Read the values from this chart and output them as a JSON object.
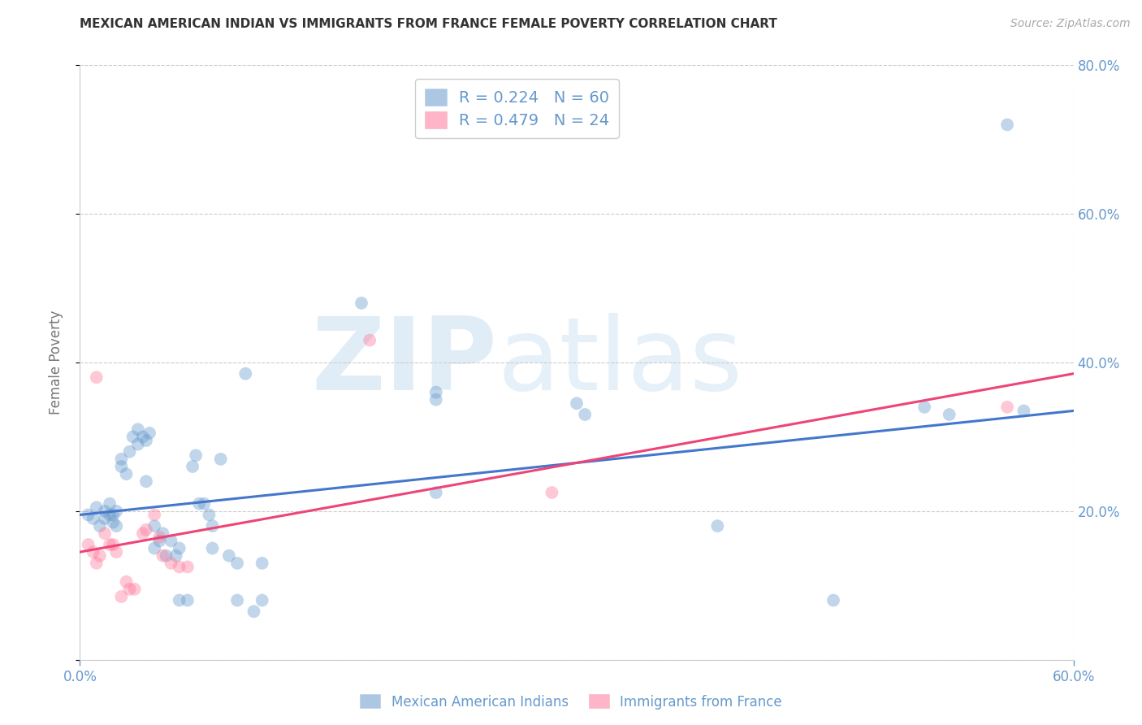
{
  "title": "MEXICAN AMERICAN INDIAN VS IMMIGRANTS FROM FRANCE FEMALE POVERTY CORRELATION CHART",
  "source": "Source: ZipAtlas.com",
  "ylabel": "Female Poverty",
  "xlim": [
    0.0,
    0.6
  ],
  "ylim": [
    0.0,
    0.8
  ],
  "xticks": [
    0.0,
    0.6
  ],
  "yticks": [
    0.0,
    0.2,
    0.4,
    0.6,
    0.8
  ],
  "blue_R": 0.224,
  "blue_N": 60,
  "pink_R": 0.479,
  "pink_N": 24,
  "blue_color": "#6699cc",
  "pink_color": "#ff7799",
  "blue_scatter": [
    [
      0.005,
      0.195
    ],
    [
      0.008,
      0.19
    ],
    [
      0.01,
      0.205
    ],
    [
      0.012,
      0.18
    ],
    [
      0.015,
      0.2
    ],
    [
      0.015,
      0.19
    ],
    [
      0.018,
      0.195
    ],
    [
      0.018,
      0.21
    ],
    [
      0.02,
      0.195
    ],
    [
      0.02,
      0.185
    ],
    [
      0.022,
      0.2
    ],
    [
      0.022,
      0.18
    ],
    [
      0.025,
      0.26
    ],
    [
      0.025,
      0.27
    ],
    [
      0.028,
      0.25
    ],
    [
      0.03,
      0.28
    ],
    [
      0.032,
      0.3
    ],
    [
      0.035,
      0.29
    ],
    [
      0.035,
      0.31
    ],
    [
      0.038,
      0.3
    ],
    [
      0.04,
      0.295
    ],
    [
      0.04,
      0.24
    ],
    [
      0.042,
      0.305
    ],
    [
      0.045,
      0.18
    ],
    [
      0.045,
      0.15
    ],
    [
      0.048,
      0.16
    ],
    [
      0.05,
      0.17
    ],
    [
      0.052,
      0.14
    ],
    [
      0.055,
      0.16
    ],
    [
      0.058,
      0.14
    ],
    [
      0.06,
      0.15
    ],
    [
      0.06,
      0.08
    ],
    [
      0.065,
      0.08
    ],
    [
      0.068,
      0.26
    ],
    [
      0.07,
      0.275
    ],
    [
      0.072,
      0.21
    ],
    [
      0.075,
      0.21
    ],
    [
      0.078,
      0.195
    ],
    [
      0.08,
      0.18
    ],
    [
      0.08,
      0.15
    ],
    [
      0.085,
      0.27
    ],
    [
      0.09,
      0.14
    ],
    [
      0.095,
      0.13
    ],
    [
      0.095,
      0.08
    ],
    [
      0.1,
      0.385
    ],
    [
      0.105,
      0.065
    ],
    [
      0.11,
      0.08
    ],
    [
      0.11,
      0.13
    ],
    [
      0.17,
      0.48
    ],
    [
      0.215,
      0.225
    ],
    [
      0.215,
      0.35
    ],
    [
      0.215,
      0.36
    ],
    [
      0.3,
      0.345
    ],
    [
      0.305,
      0.33
    ],
    [
      0.385,
      0.18
    ],
    [
      0.455,
      0.08
    ],
    [
      0.51,
      0.34
    ],
    [
      0.525,
      0.33
    ],
    [
      0.56,
      0.72
    ],
    [
      0.57,
      0.335
    ]
  ],
  "pink_scatter": [
    [
      0.005,
      0.155
    ],
    [
      0.008,
      0.145
    ],
    [
      0.01,
      0.13
    ],
    [
      0.012,
      0.14
    ],
    [
      0.015,
      0.17
    ],
    [
      0.018,
      0.155
    ],
    [
      0.02,
      0.155
    ],
    [
      0.022,
      0.145
    ],
    [
      0.025,
      0.085
    ],
    [
      0.028,
      0.105
    ],
    [
      0.03,
      0.095
    ],
    [
      0.033,
      0.095
    ],
    [
      0.038,
      0.17
    ],
    [
      0.04,
      0.175
    ],
    [
      0.045,
      0.195
    ],
    [
      0.048,
      0.165
    ],
    [
      0.05,
      0.14
    ],
    [
      0.055,
      0.13
    ],
    [
      0.06,
      0.125
    ],
    [
      0.065,
      0.125
    ],
    [
      0.01,
      0.38
    ],
    [
      0.175,
      0.43
    ],
    [
      0.285,
      0.225
    ],
    [
      0.56,
      0.34
    ]
  ],
  "blue_line_x": [
    0.0,
    0.6
  ],
  "blue_line_y": [
    0.195,
    0.335
  ],
  "pink_line_x": [
    0.0,
    0.6
  ],
  "pink_line_y": [
    0.145,
    0.385
  ],
  "watermark_zip": "ZIP",
  "watermark_atlas": "atlas",
  "background_color": "#ffffff",
  "grid_color": "#cccccc",
  "axis_color": "#6699cc",
  "title_color": "#333333",
  "ylabel_color": "#777777",
  "source_color": "#aaaaaa"
}
